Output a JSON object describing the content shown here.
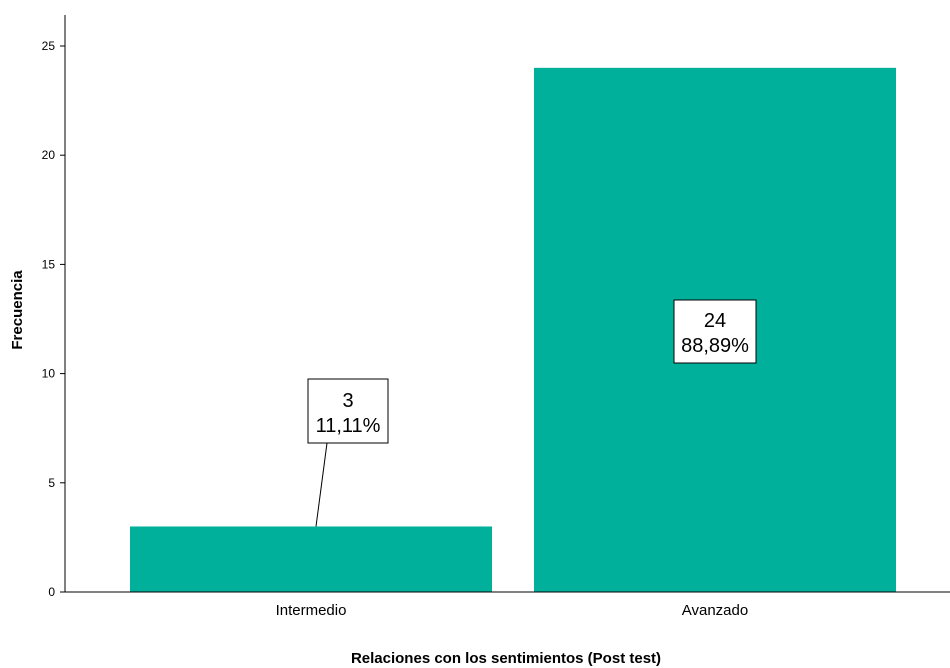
{
  "chart_data": {
    "type": "bar",
    "categories": [
      "Intermedio",
      "Avanzado"
    ],
    "values": [
      3,
      24
    ],
    "data_labels": [
      {
        "count": "3",
        "percent": "11,11%"
      },
      {
        "count": "24",
        "percent": "88,89%"
      }
    ],
    "xlabel": "Relaciones con los sentimientos (Post test)",
    "ylabel": "Frecuencia",
    "ylim": [
      0,
      25
    ],
    "yticks": [
      0,
      5,
      10,
      15,
      20,
      25
    ],
    "bar_color": "#00B09B",
    "grid": false
  }
}
